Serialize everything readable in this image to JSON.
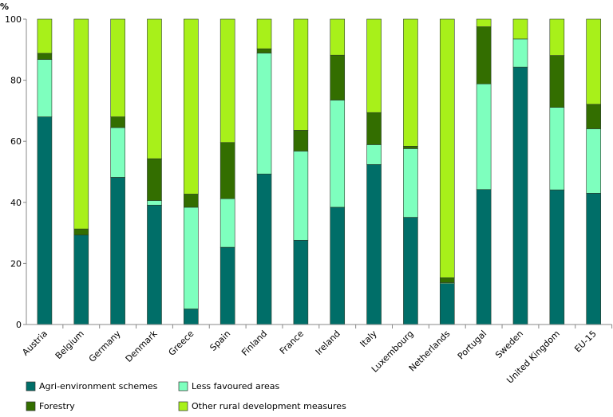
{
  "chart_data": {
    "type": "bar",
    "stacked": true,
    "ylabel": "%",
    "ylim": [
      0,
      100
    ],
    "yticks": [
      0,
      20,
      40,
      60,
      80,
      100
    ],
    "grid": false,
    "legend_position": "bottom",
    "categories": [
      "Austria",
      "Belgium",
      "Germany",
      "Denmark",
      "Greece",
      "Spain",
      "Finland",
      "France",
      "Ireland",
      "Italy",
      "Luxembourg",
      "Netherlands",
      "Portugal",
      "Sweden",
      "United Kingdom",
      "EU-15"
    ],
    "series": [
      {
        "name": "Agri-environment schemes",
        "color": "#006e68",
        "values": [
          68.0,
          29.3,
          48.2,
          39.1,
          5.1,
          25.3,
          49.3,
          27.6,
          38.4,
          52.4,
          35.1,
          13.4,
          44.2,
          84.3,
          44.1,
          43.0
        ]
      },
      {
        "name": "Less favoured areas",
        "color": "#7effbe",
        "values": [
          18.8,
          0.0,
          16.3,
          1.5,
          33.3,
          15.9,
          39.6,
          29.2,
          35.1,
          6.5,
          22.5,
          0.3,
          34.6,
          9.2,
          27.0,
          21.1
        ]
      },
      {
        "name": "Forestry",
        "color": "#336e00",
        "values": [
          2.0,
          2.0,
          3.5,
          13.7,
          4.3,
          18.4,
          1.4,
          6.8,
          14.7,
          10.5,
          0.8,
          1.6,
          18.7,
          0.0,
          17.0,
          8.0
        ]
      },
      {
        "name": "Other rural development measures",
        "color": "#a8f01a",
        "values": [
          11.2,
          68.7,
          32.0,
          45.7,
          57.3,
          40.4,
          9.7,
          36.4,
          11.8,
          30.6,
          41.6,
          84.7,
          2.5,
          6.5,
          11.9,
          27.9
        ]
      }
    ]
  }
}
